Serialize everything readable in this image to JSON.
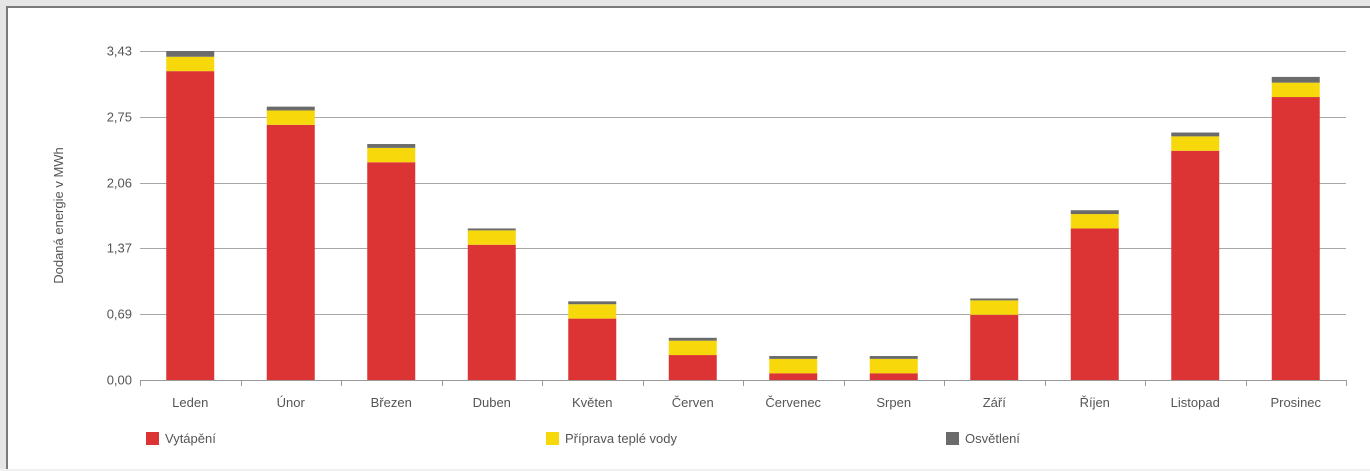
{
  "chart_data": {
    "type": "bar",
    "stacked": true,
    "ylabel": "Dodaná energie v MWh",
    "xlabel": "",
    "title": "",
    "ylim": [
      0,
      3.43
    ],
    "yticks": [
      "0,00",
      "0,69",
      "1,37",
      "2,06",
      "2,75",
      "3,43"
    ],
    "ytick_values": [
      0,
      0.686,
      1.372,
      2.058,
      2.744,
      3.43
    ],
    "grid": true,
    "legend_position": "bottom",
    "categories": [
      "Leden",
      "Únor",
      "Březen",
      "Duben",
      "Květen",
      "Červen",
      "Červenec",
      "Srpen",
      "Září",
      "Říjen",
      "Listopad",
      "Prosinec"
    ],
    "series": [
      {
        "name": "Vytápění",
        "color": "#dc3434",
        "values": [
          3.22,
          2.66,
          2.27,
          1.41,
          0.64,
          0.26,
          0.07,
          0.07,
          0.68,
          1.58,
          2.39,
          2.95
        ]
      },
      {
        "name": "Příprava teplé vody",
        "color": "#f7d80a",
        "values": [
          0.15,
          0.15,
          0.15,
          0.15,
          0.15,
          0.15,
          0.15,
          0.15,
          0.15,
          0.15,
          0.15,
          0.15
        ]
      },
      {
        "name": "Osvětlení",
        "color": "#6b6b6b",
        "values": [
          0.06,
          0.04,
          0.04,
          0.02,
          0.03,
          0.03,
          0.03,
          0.03,
          0.02,
          0.04,
          0.04,
          0.06
        ]
      }
    ]
  }
}
